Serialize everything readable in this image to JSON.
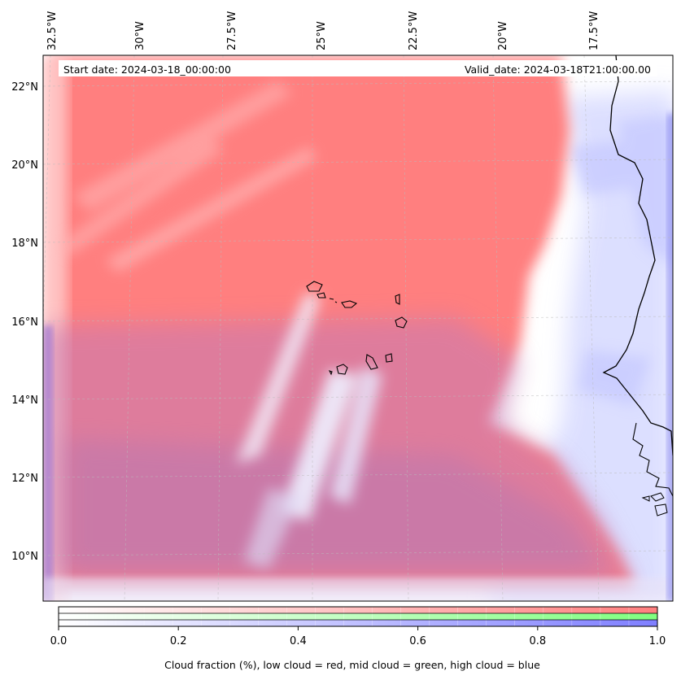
{
  "map": {
    "header": {
      "start_date": "Start date: 2024-03-18_00:00:00",
      "valid_date": "Valid_date: 2024-03-18T21:00:00.00"
    },
    "lon_ticks": [
      "32.5°W",
      "30°W",
      "27.5°W",
      "25°W",
      "22.5°W",
      "20°W",
      "17.5°W"
    ],
    "lat_ticks": [
      "22°N",
      "20°N",
      "18°N",
      "16°N",
      "14°N",
      "12°N",
      "10°N"
    ],
    "colors": {
      "low_cloud": "#ff7f7f",
      "mid_cloud": "#7fff7f",
      "high_cloud": "#7f7fff"
    }
  },
  "colorbar": {
    "ticks": [
      "0.0",
      "0.2",
      "0.4",
      "0.6",
      "0.8",
      "1.0"
    ],
    "label": "Cloud fraction (%), low cloud = red, mid cloud = green, high cloud = blue"
  }
}
